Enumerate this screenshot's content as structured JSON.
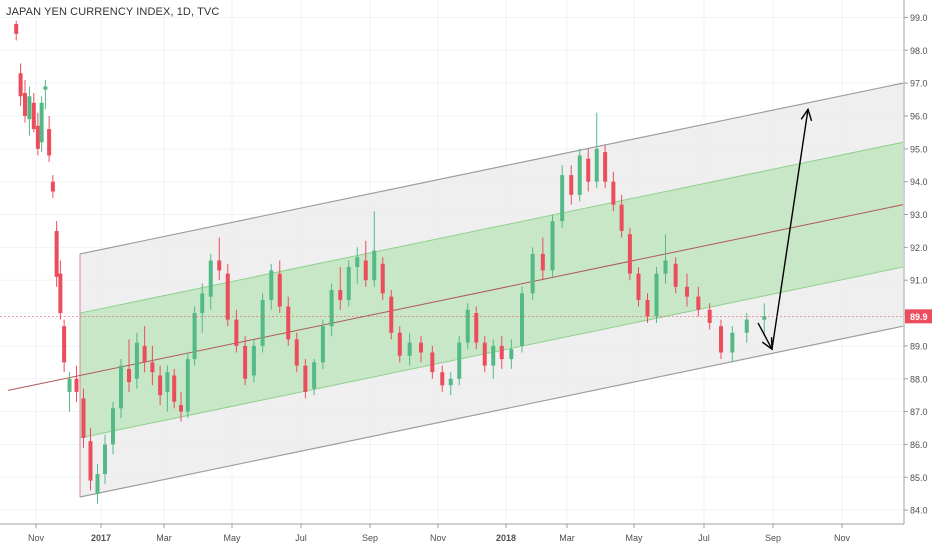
{
  "chart_data": {
    "type": "candlestick",
    "title": "JAPAN YEN CURRENCY INDEX, 1D, TVC",
    "ylim": [
      83.7,
      99.5
    ],
    "y_ticks": [
      "84.0",
      "85.0",
      "86.0",
      "87.0",
      "88.0",
      "89.0",
      "90.0",
      "91.0",
      "92.0",
      "93.0",
      "94.0",
      "95.0",
      "96.0",
      "97.0",
      "98.0",
      "99.0"
    ],
    "x_ticks": [
      "Nov",
      "2017",
      "Mar",
      "May",
      "Jul",
      "Sep",
      "Nov",
      "2018",
      "Mar",
      "May",
      "Jul",
      "Sep",
      "Nov"
    ],
    "last_price": "89.9",
    "colors": {
      "up": "#53b987",
      "down": "#eb4d5c",
      "channel_outer_fill": "#ededed",
      "channel_inner_fill": "#b9e4b9",
      "channel_border": "#9e9e9e",
      "midline": "#b05858",
      "price_label_bg": "#eb4d5c",
      "arrows": "#000000"
    },
    "channel": {
      "start": "Dec 2016",
      "end": "Oct 2018",
      "midline_start": 88.1,
      "midline_end": 93.3,
      "outer_offset": 3.7,
      "inner_offset": 1.9
    },
    "candles": [
      {
        "x": "Oct 2016",
        "open": 98.8,
        "high": 98.9,
        "low": 98.3,
        "close": 98.5
      },
      {
        "x": "Oct 2016",
        "open": 97.3,
        "high": 97.6,
        "low": 96.3,
        "close": 96.6
      },
      {
        "x": "Oct 2016",
        "open": 96.7,
        "high": 97.1,
        "low": 95.8,
        "close": 96.0
      },
      {
        "x": "Oct 2016",
        "open": 95.9,
        "high": 96.9,
        "low": 95.4,
        "close": 96.6
      },
      {
        "x": "Oct 2016",
        "open": 96.4,
        "high": 96.7,
        "low": 95.5,
        "close": 95.6
      },
      {
        "x": "Nov 2016",
        "open": 95.7,
        "high": 96.1,
        "low": 94.8,
        "close": 95.0
      },
      {
        "x": "Nov 2016",
        "open": 95.2,
        "high": 96.6,
        "low": 94.9,
        "close": 96.4
      },
      {
        "x": "Nov 2016",
        "open": 96.8,
        "high": 97.1,
        "low": 96.2,
        "close": 96.9
      },
      {
        "x": "Nov 2016",
        "open": 95.6,
        "high": 96.0,
        "low": 94.6,
        "close": 94.8
      },
      {
        "x": "Nov 2016",
        "open": 94.0,
        "high": 94.2,
        "low": 93.5,
        "close": 93.7
      },
      {
        "x": "Nov 2016",
        "open": 92.5,
        "high": 92.8,
        "low": 90.8,
        "close": 91.1
      },
      {
        "x": "Nov 2016",
        "open": 91.2,
        "high": 91.6,
        "low": 89.8,
        "close": 90.0
      },
      {
        "x": "Nov 2016",
        "open": 89.6,
        "high": 89.8,
        "low": 88.2,
        "close": 88.5
      },
      {
        "x": "Dec 2016",
        "open": 87.6,
        "high": 88.2,
        "low": 87.0,
        "close": 88.0
      },
      {
        "x": "Dec 2016",
        "open": 88.0,
        "high": 88.4,
        "low": 87.3,
        "close": 87.6
      },
      {
        "x": "Dec 2016",
        "open": 87.4,
        "high": 87.7,
        "low": 85.9,
        "close": 86.2
      },
      {
        "x": "Dec 2016",
        "open": 86.1,
        "high": 86.5,
        "low": 84.6,
        "close": 84.9
      },
      {
        "x": "Dec 2016",
        "open": 84.5,
        "high": 85.4,
        "low": 84.2,
        "close": 85.1
      },
      {
        "x": "Jan 2017",
        "open": 85.1,
        "high": 86.3,
        "low": 84.8,
        "close": 86.0
      },
      {
        "x": "Jan 2017",
        "open": 86.0,
        "high": 87.3,
        "low": 85.7,
        "close": 87.1
      },
      {
        "x": "Jan 2017",
        "open": 87.1,
        "high": 88.6,
        "low": 86.8,
        "close": 88.4
      },
      {
        "x": "Jan 2017",
        "open": 88.3,
        "high": 89.2,
        "low": 87.6,
        "close": 87.9
      },
      {
        "x": "Feb 2017",
        "open": 88.0,
        "high": 89.4,
        "low": 87.7,
        "close": 89.1
      },
      {
        "x": "Feb 2017",
        "open": 89.0,
        "high": 89.6,
        "low": 88.2,
        "close": 88.5
      },
      {
        "x": "Feb 2017",
        "open": 88.5,
        "high": 89.0,
        "low": 87.8,
        "close": 88.2
      },
      {
        "x": "Feb 2017",
        "open": 88.1,
        "high": 88.4,
        "low": 87.2,
        "close": 87.5
      },
      {
        "x": "Mar 2017",
        "open": 87.6,
        "high": 88.4,
        "low": 87.0,
        "close": 88.2
      },
      {
        "x": "Mar 2017",
        "open": 88.1,
        "high": 88.3,
        "low": 87.1,
        "close": 87.3
      },
      {
        "x": "Mar 2017",
        "open": 87.2,
        "high": 87.6,
        "low": 86.7,
        "close": 87.0
      },
      {
        "x": "Mar 2017",
        "open": 87.0,
        "high": 88.8,
        "low": 86.8,
        "close": 88.6
      },
      {
        "x": "Mar 2017",
        "open": 88.6,
        "high": 90.2,
        "low": 88.4,
        "close": 90.0
      },
      {
        "x": "Apr 2017",
        "open": 90.0,
        "high": 90.9,
        "low": 89.4,
        "close": 90.6
      },
      {
        "x": "Apr 2017",
        "open": 90.5,
        "high": 91.8,
        "low": 90.1,
        "close": 91.6
      },
      {
        "x": "Apr 2017",
        "open": 91.6,
        "high": 92.3,
        "low": 91.0,
        "close": 91.3
      },
      {
        "x": "Apr 2017",
        "open": 91.2,
        "high": 91.5,
        "low": 89.6,
        "close": 89.8
      },
      {
        "x": "May 2017",
        "open": 89.8,
        "high": 90.1,
        "low": 88.8,
        "close": 89.0
      },
      {
        "x": "May 2017",
        "open": 89.0,
        "high": 89.3,
        "low": 87.8,
        "close": 88.0
      },
      {
        "x": "May 2017",
        "open": 88.1,
        "high": 89.2,
        "low": 87.9,
        "close": 89.0
      },
      {
        "x": "May 2017",
        "open": 89.0,
        "high": 90.6,
        "low": 88.8,
        "close": 90.4
      },
      {
        "x": "Jun 2017",
        "open": 90.4,
        "high": 91.5,
        "low": 90.1,
        "close": 91.3
      },
      {
        "x": "Jun 2017",
        "open": 91.2,
        "high": 91.6,
        "low": 90.0,
        "close": 90.2
      },
      {
        "x": "Jun 2017",
        "open": 90.2,
        "high": 90.5,
        "low": 89.0,
        "close": 89.2
      },
      {
        "x": "Jun 2017",
        "open": 89.2,
        "high": 89.4,
        "low": 88.2,
        "close": 88.4
      },
      {
        "x": "Jul 2017",
        "open": 88.4,
        "high": 88.6,
        "low": 87.4,
        "close": 87.6
      },
      {
        "x": "Jul 2017",
        "open": 87.7,
        "high": 88.6,
        "low": 87.5,
        "close": 88.5
      },
      {
        "x": "Jul 2017",
        "open": 88.5,
        "high": 89.8,
        "low": 88.3,
        "close": 89.6
      },
      {
        "x": "Jul 2017",
        "open": 89.6,
        "high": 90.9,
        "low": 89.3,
        "close": 90.7
      },
      {
        "x": "Aug 2017",
        "open": 90.7,
        "high": 91.4,
        "low": 90.1,
        "close": 90.4
      },
      {
        "x": "Aug 2017",
        "open": 90.4,
        "high": 91.6,
        "low": 90.2,
        "close": 91.4
      },
      {
        "x": "Aug 2017",
        "open": 91.4,
        "high": 92.0,
        "low": 90.9,
        "close": 91.7
      },
      {
        "x": "Aug 2017",
        "open": 91.6,
        "high": 92.2,
        "low": 90.8,
        "close": 91.0
      },
      {
        "x": "Sep 2017",
        "open": 91.0,
        "high": 93.1,
        "low": 90.8,
        "close": 91.9
      },
      {
        "x": "Sep 2017",
        "open": 91.5,
        "high": 91.7,
        "low": 90.4,
        "close": 90.6
      },
      {
        "x": "Sep 2017",
        "open": 90.5,
        "high": 90.7,
        "low": 89.2,
        "close": 89.4
      },
      {
        "x": "Sep 2017",
        "open": 89.4,
        "high": 89.6,
        "low": 88.5,
        "close": 88.7
      },
      {
        "x": "Oct 2017",
        "open": 88.7,
        "high": 89.4,
        "low": 88.4,
        "close": 89.1
      },
      {
        "x": "Oct 2017",
        "open": 89.1,
        "high": 89.3,
        "low": 88.5,
        "close": 88.8
      },
      {
        "x": "Oct 2017",
        "open": 88.8,
        "high": 89.0,
        "low": 88.0,
        "close": 88.2
      },
      {
        "x": "Nov 2017",
        "open": 88.2,
        "high": 88.4,
        "low": 87.6,
        "close": 87.8
      },
      {
        "x": "Nov 2017",
        "open": 87.8,
        "high": 88.2,
        "low": 87.5,
        "close": 88.0
      },
      {
        "x": "Nov 2017",
        "open": 88.0,
        "high": 89.3,
        "low": 87.8,
        "close": 89.1
      },
      {
        "x": "Nov 2017",
        "open": 89.1,
        "high": 90.3,
        "low": 88.9,
        "close": 90.1
      },
      {
        "x": "Dec 2017",
        "open": 90.0,
        "high": 90.2,
        "low": 88.9,
        "close": 89.1
      },
      {
        "x": "Dec 2017",
        "open": 89.1,
        "high": 89.3,
        "low": 88.2,
        "close": 88.4
      },
      {
        "x": "Dec 2017",
        "open": 88.4,
        "high": 89.2,
        "low": 88.0,
        "close": 89.0
      },
      {
        "x": "Dec 2017",
        "open": 89.0,
        "high": 89.3,
        "low": 88.3,
        "close": 88.6
      },
      {
        "x": "Jan 2018",
        "open": 88.6,
        "high": 89.2,
        "low": 88.3,
        "close": 88.9
      },
      {
        "x": "Jan 2018",
        "open": 89.0,
        "high": 90.8,
        "low": 88.8,
        "close": 90.6
      },
      {
        "x": "Jan 2018",
        "open": 90.6,
        "high": 92.0,
        "low": 90.4,
        "close": 91.8
      },
      {
        "x": "Feb 2018",
        "open": 91.8,
        "high": 92.3,
        "low": 91.0,
        "close": 91.3
      },
      {
        "x": "Feb 2018",
        "open": 91.3,
        "high": 93.0,
        "low": 91.1,
        "close": 92.8
      },
      {
        "x": "Feb 2018",
        "open": 92.8,
        "high": 94.5,
        "low": 92.6,
        "close": 94.2
      },
      {
        "x": "Mar 2018",
        "open": 94.2,
        "high": 94.5,
        "low": 93.3,
        "close": 93.6
      },
      {
        "x": "Mar 2018",
        "open": 93.6,
        "high": 95.0,
        "low": 93.4,
        "close": 94.8
      },
      {
        "x": "Mar 2018",
        "open": 94.7,
        "high": 95.0,
        "low": 93.7,
        "close": 94.0
      },
      {
        "x": "Mar 2018",
        "open": 94.0,
        "high": 96.1,
        "low": 93.8,
        "close": 95.0
      },
      {
        "x": "Apr 2018",
        "open": 94.9,
        "high": 95.1,
        "low": 93.8,
        "close": 94.0
      },
      {
        "x": "Apr 2018",
        "open": 94.0,
        "high": 94.3,
        "low": 93.1,
        "close": 93.3
      },
      {
        "x": "Apr 2018",
        "open": 93.3,
        "high": 93.6,
        "low": 92.3,
        "close": 92.5
      },
      {
        "x": "Apr 2018",
        "open": 92.4,
        "high": 92.6,
        "low": 91.0,
        "close": 91.2
      },
      {
        "x": "May 2018",
        "open": 91.2,
        "high": 91.4,
        "low": 90.2,
        "close": 90.4
      },
      {
        "x": "May 2018",
        "open": 90.4,
        "high": 90.6,
        "low": 89.7,
        "close": 89.9
      },
      {
        "x": "May 2018",
        "open": 89.9,
        "high": 91.4,
        "low": 89.7,
        "close": 91.2
      },
      {
        "x": "May 2018",
        "open": 91.2,
        "high": 92.4,
        "low": 90.9,
        "close": 91.6
      },
      {
        "x": "Jun 2018",
        "open": 91.5,
        "high": 91.7,
        "low": 90.6,
        "close": 90.8
      },
      {
        "x": "Jun 2018",
        "open": 90.8,
        "high": 91.2,
        "low": 90.2,
        "close": 90.5
      },
      {
        "x": "Jun 2018",
        "open": 90.5,
        "high": 90.8,
        "low": 89.9,
        "close": 90.1
      },
      {
        "x": "Jul 2018",
        "open": 90.1,
        "high": 90.3,
        "low": 89.5,
        "close": 89.7
      },
      {
        "x": "Jul 2018",
        "open": 89.6,
        "high": 89.8,
        "low": 88.6,
        "close": 88.8
      },
      {
        "x": "Jul 2018",
        "open": 88.8,
        "high": 89.6,
        "low": 88.5,
        "close": 89.4
      },
      {
        "x": "Aug 2018",
        "open": 89.4,
        "high": 90.0,
        "low": 89.1,
        "close": 89.8
      },
      {
        "x": "Aug 2018",
        "open": 89.8,
        "high": 90.3,
        "low": 89.3,
        "close": 89.9
      }
    ],
    "annotations": [
      {
        "type": "arrow",
        "from": {
          "x": "Aug 2018",
          "y": 89.7
        },
        "to": {
          "x": "Sep 2018",
          "y": 88.9
        }
      },
      {
        "type": "arrow",
        "from": {
          "x": "Sep 2018",
          "y": 88.9
        },
        "to": {
          "x": "Oct 2018",
          "y": 96.2
        }
      }
    ]
  }
}
